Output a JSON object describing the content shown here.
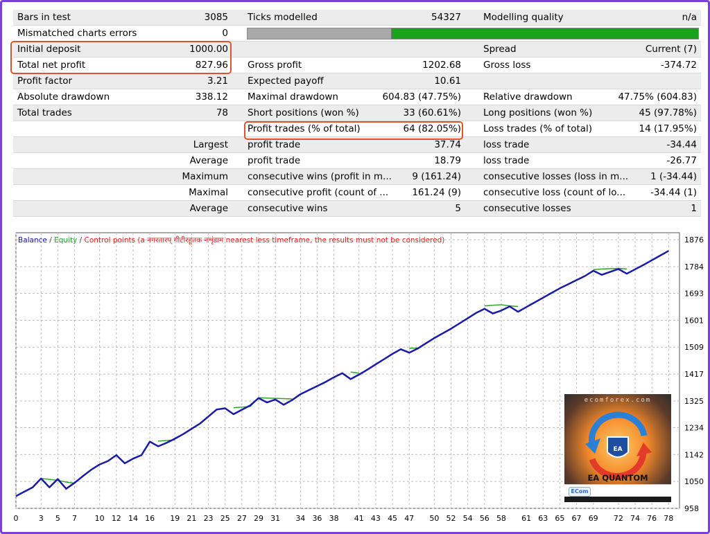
{
  "report": {
    "rows": [
      {
        "c1": {
          "label": "Bars in test",
          "value": "3085"
        },
        "c2": {
          "label": "Ticks modelled",
          "value": "54327"
        },
        "c3": {
          "label": "Modelling quality",
          "value": "n/a"
        }
      },
      {
        "c1": {
          "label": "Mismatched charts errors",
          "value": "0"
        },
        "c2": null,
        "c3": null,
        "modelling_quality_bar": {
          "gray_fraction": 0.32
        }
      },
      {
        "c1": {
          "label": "Initial deposit",
          "value": "1000.00"
        },
        "c2": {
          "label": "",
          "value": ""
        },
        "c3": {
          "label": "Spread",
          "value": "Current (7)"
        }
      },
      {
        "c1": {
          "label": "Total net profit",
          "value": "827.96"
        },
        "c2": {
          "label": "Gross profit",
          "value": "1202.68"
        },
        "c3": {
          "label": "Gross loss",
          "value": "-374.72"
        }
      },
      {
        "c1": {
          "label": "Profit factor",
          "value": "3.21"
        },
        "c2": {
          "label": "Expected payoff",
          "value": "10.61"
        },
        "c3": {
          "label": "",
          "value": ""
        }
      },
      {
        "c1": {
          "label": "Absolute drawdown",
          "value": "338.12"
        },
        "c2": {
          "label": "Maximal drawdown",
          "value": "604.83 (47.75%)"
        },
        "c3": {
          "label": "Relative drawdown",
          "value": "47.75% (604.83)"
        }
      },
      {
        "c1": {
          "label": "Total trades",
          "value": "78"
        },
        "c2": {
          "label": "Short positions (won %)",
          "value": "33 (60.61%)"
        },
        "c3": {
          "label": "Long positions (won %)",
          "value": "45 (97.78%)"
        }
      },
      {
        "c1": {
          "label": "",
          "value": ""
        },
        "c2": {
          "label": "Profit trades (% of total)",
          "value": "64 (82.05%)"
        },
        "c3": {
          "label": "Loss trades (% of total)",
          "value": "14 (17.95%)"
        }
      },
      {
        "c1": {
          "label": "",
          "value": "Largest"
        },
        "c2": {
          "label": "profit trade",
          "value": "37.74"
        },
        "c3": {
          "label": "loss trade",
          "value": "-34.44"
        }
      },
      {
        "c1": {
          "label": "",
          "value": "Average"
        },
        "c2": {
          "label": "profit trade",
          "value": "18.79"
        },
        "c3": {
          "label": "loss trade",
          "value": "-26.77"
        }
      },
      {
        "c1": {
          "label": "",
          "value": "Maximum"
        },
        "c2": {
          "label": "consecutive wins (profit in m...",
          "value": "9 (161.24)"
        },
        "c3": {
          "label": "consecutive losses (loss in m...",
          "value": "1 (-34.44)"
        }
      },
      {
        "c1": {
          "label": "",
          "value": "Maximal"
        },
        "c2": {
          "label": "consecutive profit (count of ...",
          "value": "161.24 (9)"
        },
        "c3": {
          "label": "consecutive loss (count of lo...",
          "value": "-34.44 (1)"
        }
      },
      {
        "c1": {
          "label": "",
          "value": "Average"
        },
        "c2": {
          "label": "consecutive wins",
          "value": "5"
        },
        "c3": {
          "label": "consecutive losses",
          "value": "1"
        }
      }
    ]
  },
  "legend": {
    "balance": "Balance",
    "equity": "Equity",
    "control_points": "Control points (a नगरतारप्‌ गीटीरहूतक नशृंडाम nearest less timeframe, the results must not be considered)",
    "sep": " / "
  },
  "badge": {
    "site": "ecomforex.com",
    "name": "EA QUANTOM",
    "emblem_text": "EA",
    "logo_text": "ECom"
  },
  "chart_data": {
    "type": "line",
    "title": "",
    "xlabel": "",
    "ylabel": "",
    "x_ticks": [
      0,
      3,
      5,
      7,
      10,
      12,
      14,
      16,
      19,
      21,
      23,
      25,
      27,
      29,
      31,
      34,
      36,
      38,
      41,
      43,
      45,
      47,
      50,
      52,
      54,
      56,
      58,
      61,
      63,
      65,
      67,
      69,
      72,
      74,
      76,
      78
    ],
    "y_ticks": [
      958,
      1050,
      1142,
      1234,
      1325,
      1417,
      1509,
      1601,
      1693,
      1784,
      1876
    ],
    "xlim": [
      0,
      79.3
    ],
    "ylim": [
      958,
      1900
    ],
    "grid": true,
    "legend_position": "top-left",
    "series": [
      {
        "name": "Balance",
        "color": "#1a1aa8",
        "x": [
          0,
          1,
          2,
          3,
          4,
          5,
          6,
          7,
          8,
          9,
          10,
          11,
          12,
          13,
          14,
          15,
          16,
          17,
          18,
          19,
          20,
          21,
          22,
          23,
          24,
          25,
          26,
          27,
          28,
          29,
          30,
          31,
          32,
          33,
          34,
          35,
          36,
          37,
          38,
          39,
          40,
          41,
          42,
          43,
          44,
          45,
          46,
          47,
          48,
          49,
          50,
          51,
          52,
          53,
          54,
          55,
          56,
          57,
          58,
          59,
          60,
          61,
          62,
          63,
          64,
          65,
          66,
          67,
          68,
          69,
          70,
          71,
          72,
          73,
          74,
          75,
          76,
          77,
          78
        ],
        "y": [
          1000,
          1015,
          1030,
          1060,
          1030,
          1058,
          1025,
          1045,
          1068,
          1090,
          1108,
          1120,
          1140,
          1112,
          1128,
          1140,
          1186,
          1170,
          1182,
          1196,
          1212,
          1230,
          1248,
          1272,
          1296,
          1300,
          1280,
          1295,
          1310,
          1335,
          1320,
          1330,
          1312,
          1328,
          1348,
          1362,
          1376,
          1390,
          1406,
          1420,
          1400,
          1415,
          1432,
          1450,
          1468,
          1486,
          1502,
          1490,
          1504,
          1522,
          1540,
          1556,
          1572,
          1590,
          1608,
          1626,
          1640,
          1624,
          1634,
          1648,
          1630,
          1646,
          1662,
          1678,
          1694,
          1710,
          1724,
          1738,
          1752,
          1770,
          1756,
          1766,
          1776,
          1760,
          1775,
          1790,
          1806,
          1822,
          1838
        ]
      },
      {
        "name": "Equity",
        "color": "#28a428",
        "x": [
          3,
          5,
          6,
          7,
          17,
          18,
          19,
          26,
          27,
          28,
          29,
          31,
          33,
          40,
          41,
          47,
          48,
          56,
          57,
          58,
          59,
          60,
          69,
          70,
          72,
          73
        ],
        "y": [
          1060,
          1054,
          1048,
          1044,
          1188,
          1190,
          1192,
          1302,
          1304,
          1306,
          1336,
          1334,
          1332,
          1424,
          1420,
          1505,
          1506,
          1650,
          1652,
          1654,
          1650,
          1648,
          1774,
          1776,
          1778,
          1776
        ]
      }
    ]
  }
}
